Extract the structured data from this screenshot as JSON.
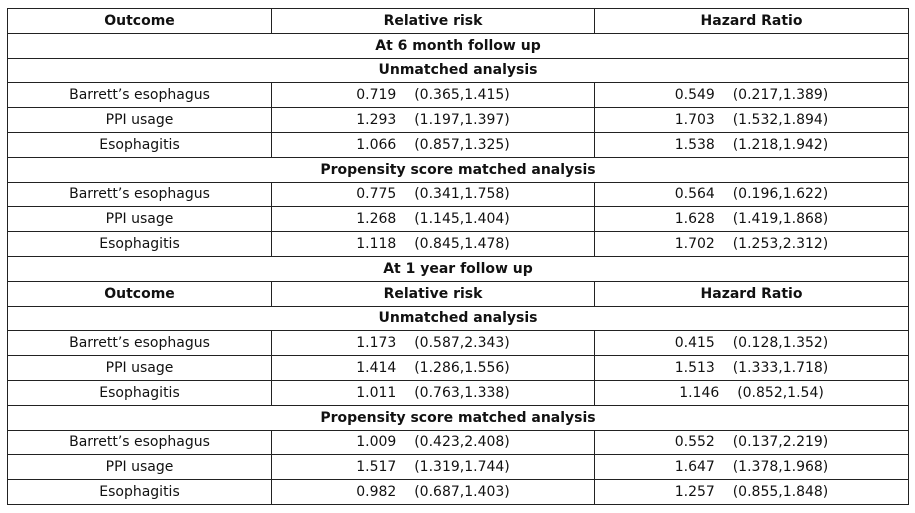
{
  "headers": [
    "Outcome",
    "Relative risk",
    "Hazard Ratio"
  ],
  "rows": [
    {
      "type": "header"
    },
    {
      "type": "section",
      "text": "At 6 month follow up"
    },
    {
      "type": "section",
      "text": "Unmatched analysis"
    },
    {
      "type": "data",
      "outcome": "Barrett’s esophagus",
      "rr": "0.719",
      "rr_ci": "(0.365,1.415)",
      "hr": "0.549",
      "hr_ci": "(0.217,1.389)"
    },
    {
      "type": "data",
      "outcome": "PPI usage",
      "rr": "1.293",
      "rr_ci": "(1.197,1.397)",
      "hr": "1.703",
      "hr_ci": "(1.532,1.894)"
    },
    {
      "type": "data",
      "outcome": "Esophagitis",
      "rr": "1.066",
      "rr_ci": "(0.857,1.325)",
      "hr": "1.538",
      "hr_ci": "(1.218,1.942)"
    },
    {
      "type": "section",
      "text": "Propensity score matched analysis"
    },
    {
      "type": "data",
      "outcome": "Barrett’s esophagus",
      "rr": "0.775",
      "rr_ci": "(0.341,1.758)",
      "hr": "0.564",
      "hr_ci": "(0.196,1.622)"
    },
    {
      "type": "data",
      "outcome": "PPI usage",
      "rr": "1.268",
      "rr_ci": "(1.145,1.404)",
      "hr": "1.628",
      "hr_ci": "(1.419,1.868)"
    },
    {
      "type": "data",
      "outcome": "Esophagitis",
      "rr": "1.118",
      "rr_ci": "(0.845,1.478)",
      "hr": "1.702",
      "hr_ci": "(1.253,2.312)"
    },
    {
      "type": "section",
      "text": "At 1 year follow up"
    },
    {
      "type": "header"
    },
    {
      "type": "section",
      "text": "Unmatched analysis"
    },
    {
      "type": "data",
      "outcome": "Barrett’s esophagus",
      "rr": "1.173",
      "rr_ci": "(0.587,2.343)",
      "hr": "0.415",
      "hr_ci": "(0.128,1.352)"
    },
    {
      "type": "data",
      "outcome": "PPI usage",
      "rr": "1.414",
      "rr_ci": "(1.286,1.556)",
      "hr": "1.513",
      "hr_ci": "(1.333,1.718)"
    },
    {
      "type": "data",
      "outcome": "Esophagitis",
      "rr": "1.011",
      "rr_ci": "(0.763,1.338)",
      "hr": "1.146",
      "hr_ci": "(0.852,1.54)"
    },
    {
      "type": "section",
      "text": "Propensity score matched analysis"
    },
    {
      "type": "data",
      "outcome": "Barrett’s esophagus",
      "rr": "1.009",
      "rr_ci": "(0.423,2.408)",
      "hr": "0.552",
      "hr_ci": "(0.137,2.219)"
    },
    {
      "type": "data",
      "outcome": "PPI usage",
      "rr": "1.517",
      "rr_ci": "(1.319,1.744)",
      "hr": "1.647",
      "hr_ci": "(1.378,1.968)"
    },
    {
      "type": "data",
      "outcome": "Esophagitis",
      "rr": "0.982",
      "rr_ci": "(0.687,1.403)",
      "hr": "1.257",
      "hr_ci": "(0.855,1.848)"
    }
  ]
}
